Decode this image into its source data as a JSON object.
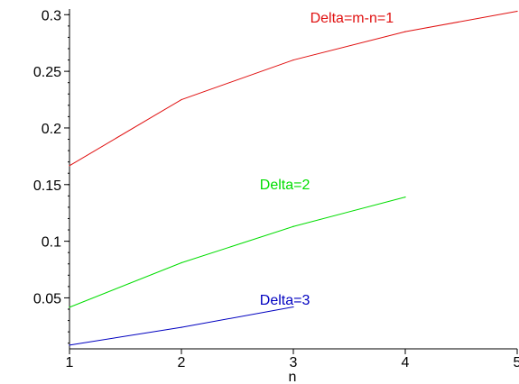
{
  "chart_data": {
    "type": "line",
    "title": "",
    "xlabel": "n",
    "ylabel": "",
    "xlim": [
      1,
      5
    ],
    "ylim": [
      0.005,
      0.305
    ],
    "grid": false,
    "legend": "none",
    "x_ticks": [
      1,
      2,
      3,
      4,
      5
    ],
    "x_tick_labels": [
      "1",
      "2",
      "3",
      "4",
      "5"
    ],
    "y_ticks": [
      0.05,
      0.1,
      0.15,
      0.2,
      0.25,
      0.3
    ],
    "y_tick_labels": [
      "0.05",
      "0.1",
      "0.15",
      "0.2",
      "0.25",
      "0.3"
    ],
    "y_minor_step": 0.01,
    "series": [
      {
        "label": "Delta=m-n=1",
        "color": "#e01010",
        "x": [
          1,
          2,
          3,
          4,
          5
        ],
        "y": [
          0.1667,
          0.225,
          0.26,
          0.285,
          0.303
        ]
      },
      {
        "label": "Delta=2",
        "color": "#00dd00",
        "x": [
          1,
          2,
          3,
          4
        ],
        "y": [
          0.0417,
          0.081,
          0.113,
          0.139
        ]
      },
      {
        "label": "Delta=3",
        "color": "#0000c0",
        "x": [
          1,
          2,
          3
        ],
        "y": [
          0.0083,
          0.024,
          0.042
        ]
      }
    ],
    "annotations": [
      {
        "text": "Delta=m-n=1",
        "x": 3.15,
        "y": 0.293,
        "color": "#e01010"
      },
      {
        "text": "Delta=2",
        "x": 2.7,
        "y": 0.146,
        "color": "#00dd00"
      },
      {
        "text": "Delta=3",
        "x": 2.7,
        "y": 0.044,
        "color": "#0000c0"
      }
    ]
  }
}
